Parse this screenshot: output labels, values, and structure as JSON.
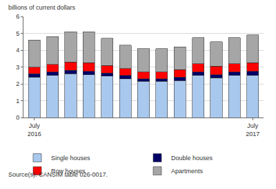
{
  "chart_data": {
    "type": "bar",
    "stacked": true,
    "ylabel": "billions of current dollars",
    "source": "Source(s): CANSIM table 026-0017.",
    "categories": [
      "July 2016",
      null,
      null,
      null,
      null,
      null,
      null,
      null,
      null,
      null,
      null,
      null,
      "July 2017"
    ],
    "series": [
      {
        "name": "Single houses",
        "color": "#a9c8ee",
        "values": [
          2.4,
          2.5,
          2.6,
          2.55,
          2.45,
          2.3,
          2.15,
          2.15,
          2.2,
          2.5,
          2.35,
          2.5,
          2.5
        ]
      },
      {
        "name": "Double houses",
        "color": "#000066",
        "values": [
          0.2,
          0.2,
          0.2,
          0.2,
          0.2,
          0.2,
          0.15,
          0.15,
          0.2,
          0.2,
          0.2,
          0.2,
          0.25
        ]
      },
      {
        "name": "Row houses",
        "color": "#ff0000",
        "values": [
          0.4,
          0.45,
          0.5,
          0.5,
          0.45,
          0.4,
          0.4,
          0.4,
          0.45,
          0.5,
          0.5,
          0.5,
          0.5
        ]
      },
      {
        "name": "Apartments",
        "color": "#a6a6a6",
        "values": [
          1.6,
          1.65,
          1.8,
          1.85,
          1.6,
          1.4,
          1.4,
          1.4,
          1.35,
          1.55,
          1.45,
          1.55,
          1.65
        ]
      }
    ],
    "ylim": [
      0,
      6
    ],
    "yticks": [
      0,
      1,
      2,
      3,
      4,
      5,
      6
    ],
    "grid": true,
    "legend": "bottom"
  }
}
